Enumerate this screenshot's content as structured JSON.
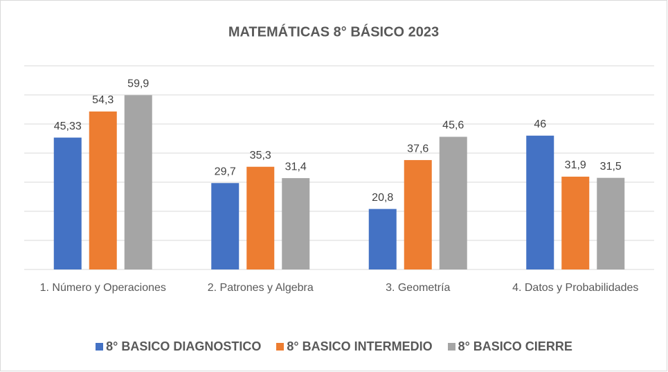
{
  "chart_data": {
    "type": "bar",
    "title": "MATEMÁTICAS 8° BÁSICO 2023",
    "categories": [
      "1. Número y Operaciones",
      "2. Patrones y Algebra",
      "3. Geometría",
      "4. Datos y Probabilidades"
    ],
    "series": [
      {
        "name": "8° BASICO DIAGNOSTICO",
        "color": "#4472c4",
        "values": [
          45.33,
          29.7,
          20.8,
          46
        ],
        "value_labels": [
          "45,33",
          "29,7",
          "20,8",
          "46"
        ]
      },
      {
        "name": "8° BASICO INTERMEDIO",
        "color": "#ed7d31",
        "values": [
          54.3,
          35.3,
          37.6,
          31.9
        ],
        "value_labels": [
          "54,3",
          "35,3",
          "37,6",
          "31,9"
        ]
      },
      {
        "name": "8° BASICO CIERRE",
        "color": "#a5a5a5",
        "values": [
          59.9,
          31.4,
          45.6,
          31.5
        ],
        "value_labels": [
          "59,9",
          "31,4",
          "45,6",
          "31,5"
        ]
      }
    ],
    "ylim": [
      0,
      70
    ],
    "yticks": [
      0,
      10,
      20,
      30,
      40,
      50,
      60,
      70
    ],
    "grid": true,
    "legend": "bottom"
  }
}
